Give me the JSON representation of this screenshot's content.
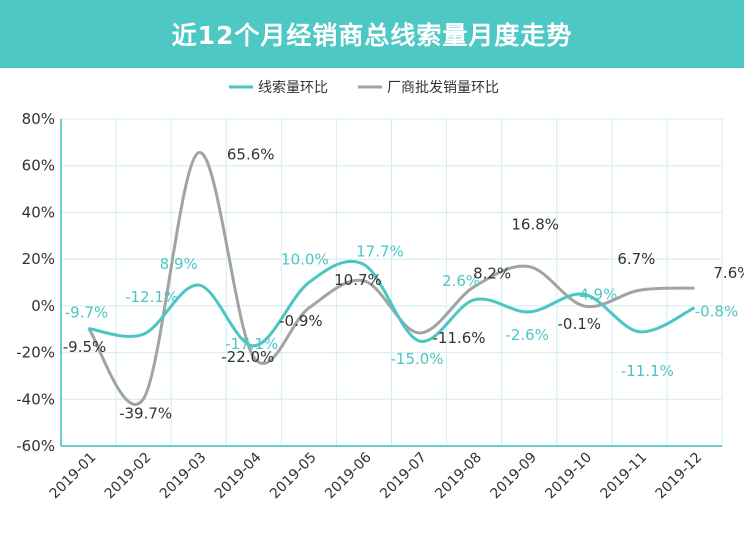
{
  "title": "近12个月经销商总线索量月度走势",
  "colors": {
    "title_bg": "#4dc8c4",
    "series_leads": "#4cc6c3",
    "series_wholesale": "#a3a3a3",
    "label_leads": "#4cc6c3",
    "label_wholesale": "#333333",
    "axis": "#3fbdb9",
    "grid": "#cfeeed"
  },
  "chart_data": {
    "type": "line",
    "title": "近12个月经销商总线索量月度走势",
    "categories": [
      "2019-01",
      "2019-02",
      "2019-03",
      "2019-04",
      "2019-05",
      "2019-06",
      "2019-07",
      "2019-08",
      "2019-09",
      "2019-10",
      "2019-11",
      "2019-12"
    ],
    "ylim": [
      -60,
      80
    ],
    "yticks": [
      "80%",
      "60%",
      "40%",
      "20%",
      "0%",
      "-20%",
      "-40%",
      "-60%"
    ],
    "grid": true,
    "legend_position": "top-center",
    "series": [
      {
        "name": "线索量环比",
        "values": [
          -9.7,
          -12.1,
          8.9,
          -17.1,
          10.0,
          17.7,
          -15.0,
          2.6,
          -2.6,
          4.9,
          -11.1,
          -0.8
        ],
        "labels": [
          "-9.7%",
          "-12.1%",
          "8.9%",
          "-17.1%",
          "10.0%",
          "17.7%",
          "-15.0%",
          "2.6%",
          "-2.6%",
          "4.9%",
          "-11.1%",
          "-0.8%"
        ]
      },
      {
        "name": "厂商批发销量环比",
        "values": [
          -9.5,
          -39.7,
          65.6,
          -22.0,
          -0.9,
          10.7,
          -11.6,
          8.2,
          16.8,
          -0.1,
          6.7,
          7.6
        ],
        "labels": [
          "-9.5%",
          "-39.7%",
          "65.6%",
          "-22.0%",
          "-0.9%",
          "10.7%",
          "-11.6%",
          "8.2%",
          "16.8%",
          "-0.1%",
          "6.7%",
          "7.6%"
        ]
      }
    ]
  }
}
